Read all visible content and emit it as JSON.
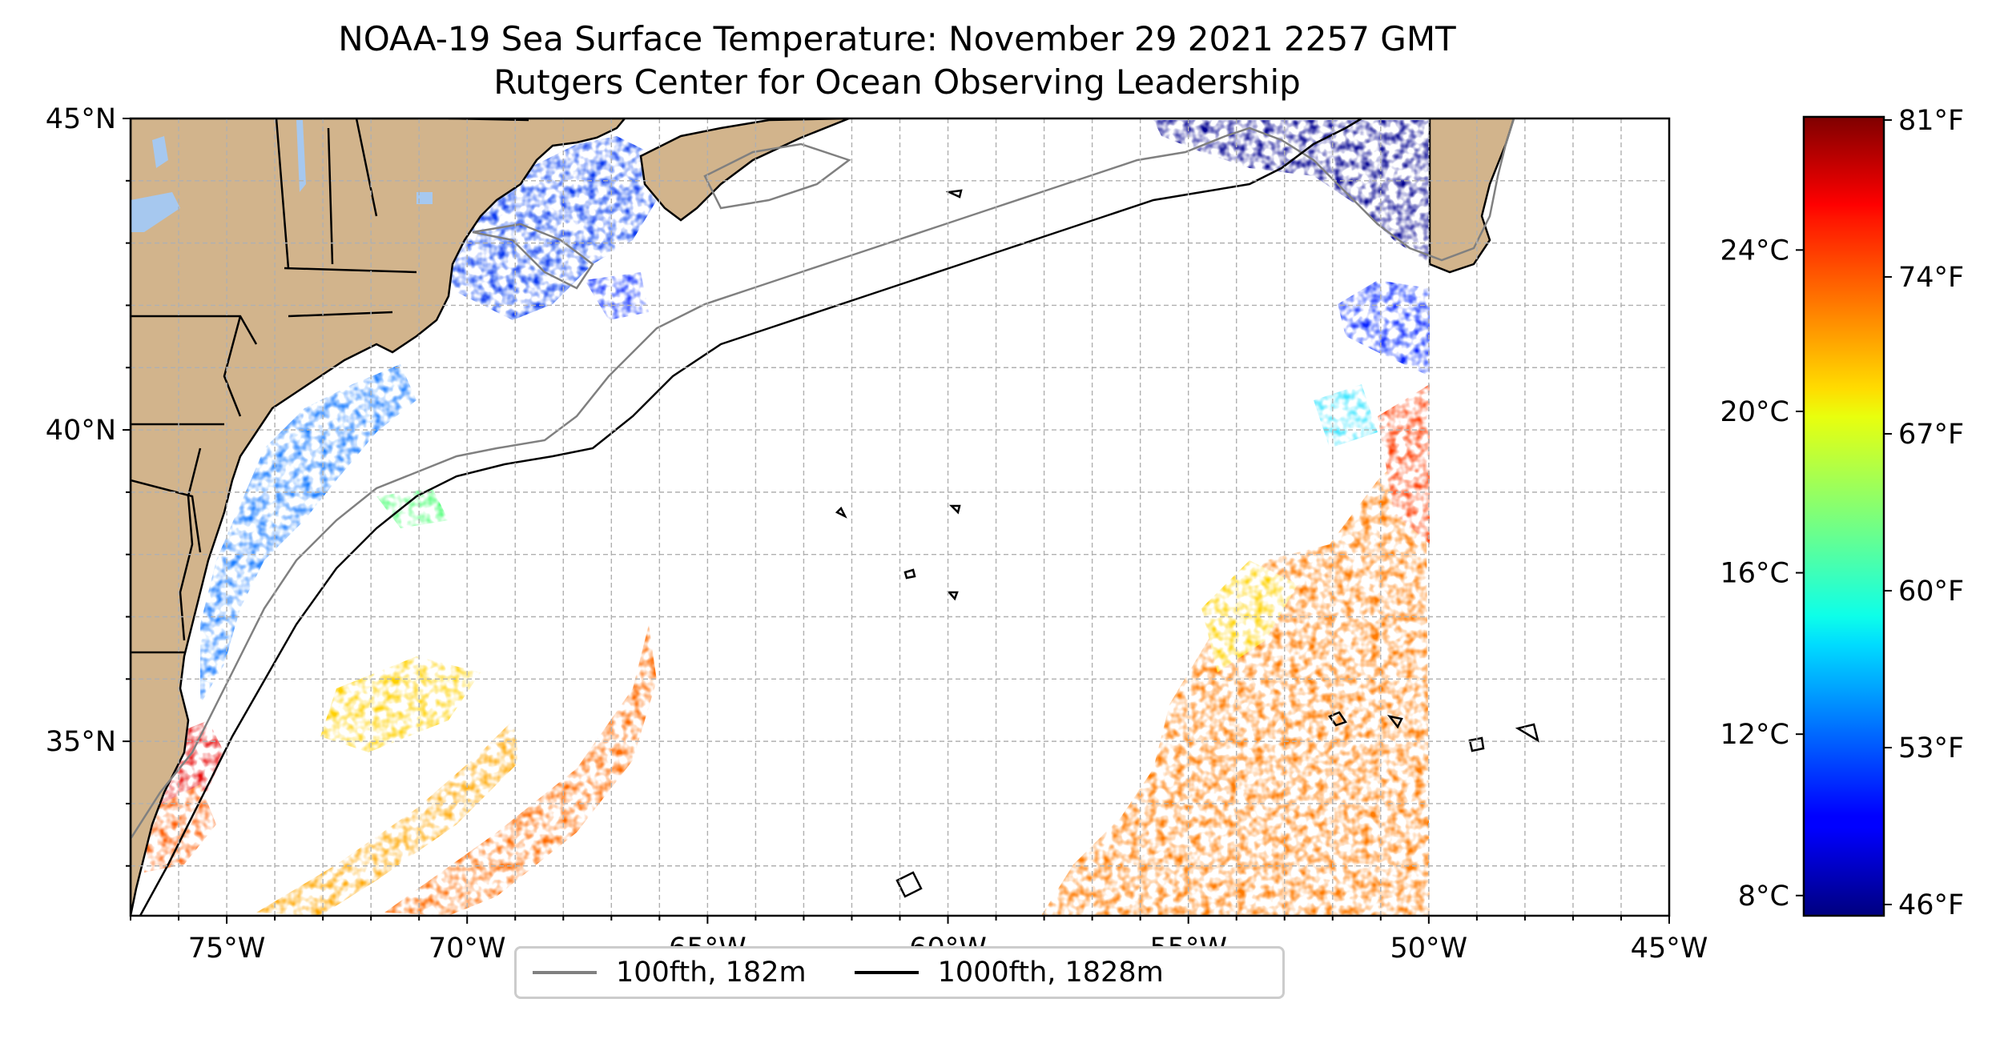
{
  "title": {
    "line1": "NOAA-19 Sea Surface Temperature: November 29 2021 2257 GMT",
    "line2": "Rutgers Center for Ocean Observing Leadership"
  },
  "axes": {
    "lon_min": -77,
    "lon_max": -45,
    "lat_min": 32.2,
    "lat_max": 45,
    "x_ticks": [
      {
        "value": -75,
        "label": "75°W"
      },
      {
        "value": -70,
        "label": "70°W"
      },
      {
        "value": -65,
        "label": "65°W"
      },
      {
        "value": -60,
        "label": "60°W"
      },
      {
        "value": -55,
        "label": "55°W"
      },
      {
        "value": -50,
        "label": "50°W"
      },
      {
        "value": -45,
        "label": "45°W"
      }
    ],
    "y_ticks": [
      {
        "value": 45,
        "label": "45°N"
      },
      {
        "value": 40,
        "label": "40°N"
      },
      {
        "value": 35,
        "label": "35°N"
      }
    ],
    "gridlines": true,
    "grid_spacing_deg": 1
  },
  "colorbar": {
    "colormap": "jet",
    "celsius_min": 7.5,
    "celsius_max": 27.3,
    "celsius_ticks": [
      {
        "value": 8,
        "label": "8°C"
      },
      {
        "value": 12,
        "label": "12°C"
      },
      {
        "value": 16,
        "label": "16°C"
      },
      {
        "value": 20,
        "label": "20°C"
      },
      {
        "value": 24,
        "label": "24°C"
      }
    ],
    "fahrenheit_ticks": [
      {
        "value": 46,
        "label": "46°F"
      },
      {
        "value": 53,
        "label": "53°F"
      },
      {
        "value": 60,
        "label": "60°F"
      },
      {
        "value": 67,
        "label": "67°F"
      },
      {
        "value": 74,
        "label": "74°F"
      },
      {
        "value": 81,
        "label": "81°F"
      }
    ]
  },
  "legend": {
    "items": [
      {
        "label": "100fth, 182m",
        "color": "#808080"
      },
      {
        "label": "1000fth, 1828m",
        "color": "#000000"
      }
    ]
  },
  "colors": {
    "land": "#d2b48c",
    "water_bodies": "#a6c8ef",
    "grid": "#b0b0b0"
  }
}
